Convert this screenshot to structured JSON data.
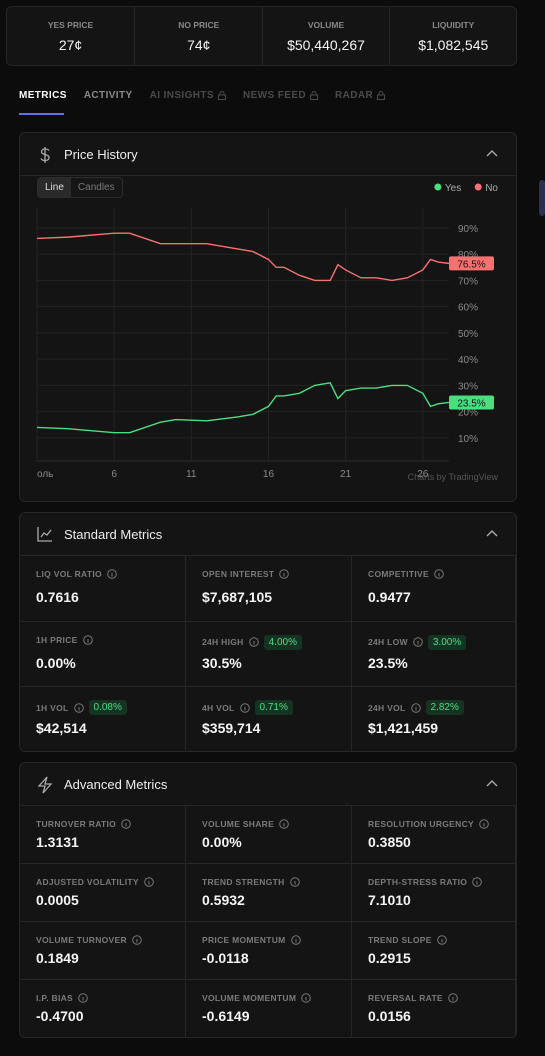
{
  "stats": [
    {
      "label": "YES PRICE",
      "value": "27¢"
    },
    {
      "label": "NO PRICE",
      "value": "74¢"
    },
    {
      "label": "VOLUME",
      "value": "$50,440,267"
    },
    {
      "label": "LIQUIDITY",
      "value": "$1,082,545"
    }
  ],
  "tabs": [
    {
      "label": "METRICS",
      "active": true
    },
    {
      "label": "ACTIVITY"
    },
    {
      "label": "AI INSIGHTS",
      "locked": true
    },
    {
      "label": "NEWS FEED",
      "locked": true
    },
    {
      "label": "RADAR",
      "locked": true
    }
  ],
  "price_history": {
    "title": "Price History",
    "toggles": [
      "Line",
      "Candles"
    ],
    "attribution": "Charts by TradingView",
    "chart_data": {
      "type": "line",
      "x": [
        1,
        3,
        6,
        7,
        8,
        9,
        10,
        12,
        14,
        15,
        16,
        16.5,
        17,
        18,
        19,
        20,
        20.5,
        21,
        22,
        23,
        24,
        25,
        26,
        26.5,
        27,
        27.7
      ],
      "series": [
        {
          "name": "Yes",
          "color": "#4ade80",
          "values": [
            14,
            13.5,
            12,
            12,
            14,
            16,
            17,
            16.5,
            18,
            19,
            22,
            26,
            26,
            27,
            30,
            31,
            25,
            28,
            29,
            29,
            30,
            30,
            27,
            22,
            23,
            23.5
          ],
          "last": {
            "value": 23.5,
            "label": "23.5%"
          }
        },
        {
          "name": "No",
          "color": "#f87171",
          "values": [
            86,
            86.5,
            88,
            88,
            86,
            84,
            84,
            84,
            82,
            81,
            78,
            75,
            75,
            72,
            70,
            70,
            76,
            74,
            71,
            71,
            70,
            71,
            74,
            78,
            77,
            76.5
          ],
          "last": {
            "value": 76.5,
            "label": "76.5%"
          }
        }
      ],
      "xlim": [
        1,
        27.7
      ],
      "xticks": [
        {
          "value": 1,
          "label": "оль"
        },
        6,
        11,
        16,
        21,
        26
      ],
      "ylim": [
        1.2,
        97.6
      ],
      "yticks": [
        {
          "value": 10,
          "label": "10%"
        },
        {
          "value": 20,
          "label": "20%"
        },
        {
          "value": 30,
          "label": "30%"
        },
        {
          "value": 40,
          "label": "40%"
        },
        {
          "value": 50,
          "label": "50%"
        },
        {
          "value": 60,
          "label": "60%"
        },
        {
          "value": 70,
          "label": "70%"
        },
        {
          "value": 80,
          "label": "80%"
        },
        {
          "value": 90,
          "label": "90%"
        }
      ],
      "grid": true
    }
  },
  "standard_metrics": {
    "title": "Standard Metrics",
    "cells": [
      {
        "label": "LIQ VOL RATIO",
        "value": "0.7616"
      },
      {
        "label": "OPEN INTEREST",
        "value": "$7,687,105"
      },
      {
        "label": "COMPETITIVE",
        "value": "0.9477"
      },
      {
        "label": "1H PRICE",
        "value": "0.00%"
      },
      {
        "label": "24H HIGH",
        "value": "30.5%",
        "badge": "4.00%"
      },
      {
        "label": "24H LOW",
        "value": "23.5%",
        "badge": "3.00%"
      },
      {
        "label": "1H VOL",
        "value": "$42,514",
        "badge": "0.08%"
      },
      {
        "label": "4H VOL",
        "value": "$359,714",
        "badge": "0.71%"
      },
      {
        "label": "24H VOL",
        "value": "$1,421,459",
        "badge": "2.82%"
      }
    ]
  },
  "advanced_metrics": {
    "title": "Advanced Metrics",
    "cells": [
      {
        "label": "TURNOVER RATIO",
        "value": "1.3131"
      },
      {
        "label": "VOLUME SHARE",
        "value": "0.00%"
      },
      {
        "label": "RESOLUTION URGENCY",
        "value": "0.3850"
      },
      {
        "label": "ADJUSTED VOLATILITY",
        "value": "0.0005"
      },
      {
        "label": "TREND STRENGTH",
        "value": "0.5932"
      },
      {
        "label": "DEPTH-STRESS RATIO",
        "value": "7.1010"
      },
      {
        "label": "VOLUME TURNOVER",
        "value": "0.1849"
      },
      {
        "label": "PRICE MOMENTUM",
        "value": "-0.0118"
      },
      {
        "label": "TREND SLOPE",
        "value": "0.2915"
      },
      {
        "label": "I.P. BIAS",
        "value": "-0.4700"
      },
      {
        "label": "VOLUME MOMENTUM",
        "value": "-0.6149"
      },
      {
        "label": "REVERSAL RATE",
        "value": "0.0156"
      }
    ]
  }
}
